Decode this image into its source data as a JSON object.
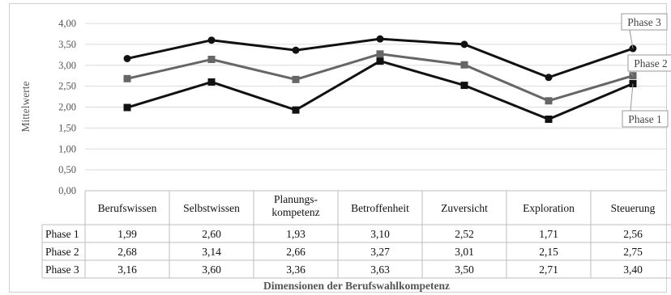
{
  "chart_data": {
    "type": "line",
    "ylabel": "Mittelwerte",
    "xlabel": "Dimensionen der Berufswahlkompetenz",
    "ylim": [
      0,
      4
    ],
    "yticks": [
      "0,00",
      "0,50",
      "1,00",
      "1,50",
      "2,00",
      "2,50",
      "3,00",
      "3,50",
      "4,00"
    ],
    "grid": true,
    "categories": [
      "Berufswissen",
      "Selbstwissen",
      "Planungs-\nkompetenz",
      "Betroffenheit",
      "Zuversicht",
      "Exploration",
      "Steuerung"
    ],
    "series": [
      {
        "name": "Phase 1",
        "values": [
          1.99,
          2.6,
          1.93,
          3.1,
          2.52,
          1.71,
          2.56
        ],
        "labels": [
          "1,99",
          "2,60",
          "1,93",
          "3,10",
          "2,52",
          "1,71",
          "2,56"
        ],
        "color": "#111111",
        "marker": "square"
      },
      {
        "name": "Phase 2",
        "values": [
          2.68,
          3.14,
          2.66,
          3.27,
          3.01,
          2.15,
          2.75
        ],
        "labels": [
          "2,68",
          "3,14",
          "2,66",
          "3,27",
          "3,01",
          "2,15",
          "2,75"
        ],
        "color": "#666666",
        "marker": "square"
      },
      {
        "name": "Phase 3",
        "values": [
          3.16,
          3.6,
          3.36,
          3.63,
          3.5,
          2.71,
          3.4
        ],
        "labels": [
          "3,16",
          "3,60",
          "3,36",
          "3,63",
          "3,50",
          "2,71",
          "3,40"
        ],
        "color": "#111111",
        "marker": "circle"
      }
    ]
  }
}
